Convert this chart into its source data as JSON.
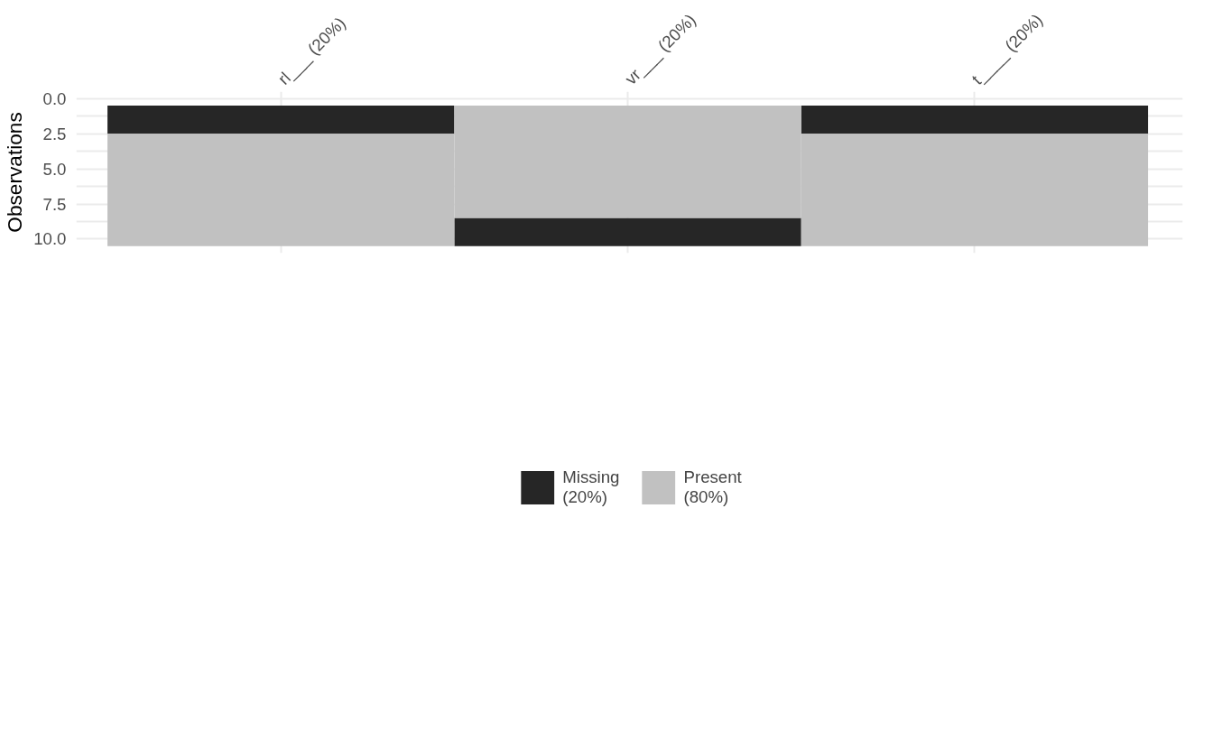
{
  "chart_data": {
    "type": "bar",
    "ylabel": "Observations",
    "categories": [
      "rl___ (20%)",
      "vr___ (20%)",
      "t____ (20%)"
    ],
    "series": [
      {
        "name": "Missing\n(20%)",
        "color": "#262626",
        "values": [
          2,
          2,
          2
        ],
        "base": [
          0.5,
          8.5,
          0.5
        ]
      },
      {
        "name": "Present\n(80%)",
        "color": "#c1c1c1",
        "values": [
          8,
          8,
          8
        ],
        "base": [
          2.5,
          0.5,
          2.5
        ]
      }
    ],
    "ylim": [
      11.0,
      -0.5
    ],
    "yticks": [
      {
        "value": 0,
        "label": "0.0"
      },
      {
        "value": 1.25,
        "label": null
      },
      {
        "value": 2.5,
        "label": "2.5"
      },
      {
        "value": 3.75,
        "label": null
      },
      {
        "value": 5,
        "label": "5.0"
      },
      {
        "value": 6.25,
        "label": null
      },
      {
        "value": 7.5,
        "label": "7.5"
      },
      {
        "value": 8.75,
        "label": null
      },
      {
        "value": 10,
        "label": "10.0"
      }
    ],
    "grid": true,
    "legend": "bottom"
  }
}
